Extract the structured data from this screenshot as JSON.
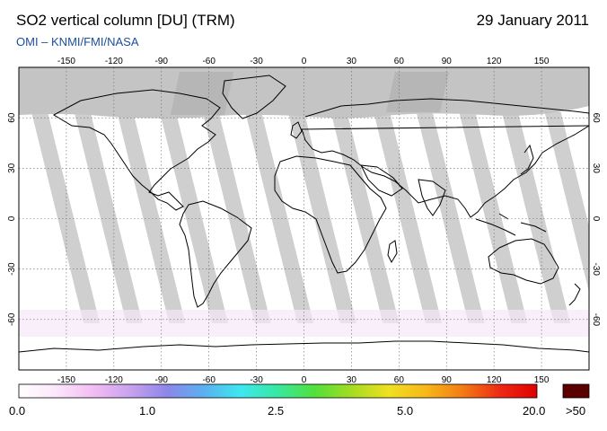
{
  "header": {
    "title": "SO2 vertical column [DU] (TRM)",
    "date": "29 January 2011",
    "source": "OMI  –  KNMI/FMI/NASA"
  },
  "map": {
    "lon_ticks": [
      "-150",
      "-120",
      "-90",
      "-60",
      "-30",
      "0",
      "30",
      "60",
      "90",
      "120",
      "150"
    ],
    "lat_ticks": [
      "60",
      "30",
      "0",
      "-30",
      "-60"
    ],
    "colors": {
      "land_outline": "#000000",
      "no_data": "#c8c8c8",
      "polar_night": "#c0c0c0",
      "gridline": "#666666"
    }
  },
  "colorbar": {
    "labels": [
      "0.0",
      "1.0",
      "2.5",
      "5.0",
      "20.0"
    ],
    "over_label": ">50",
    "over_color": "#5a0000",
    "stops": [
      "#ffffff",
      "#fbe7fb",
      "#f3bdf3",
      "#c9a2ee",
      "#8d86ea",
      "#5ab0f0",
      "#3ee8f0",
      "#37e8a0",
      "#52e03a",
      "#a6dc20",
      "#f0e020",
      "#f7b818",
      "#f47a14",
      "#ee2a14",
      "#e00000"
    ]
  }
}
